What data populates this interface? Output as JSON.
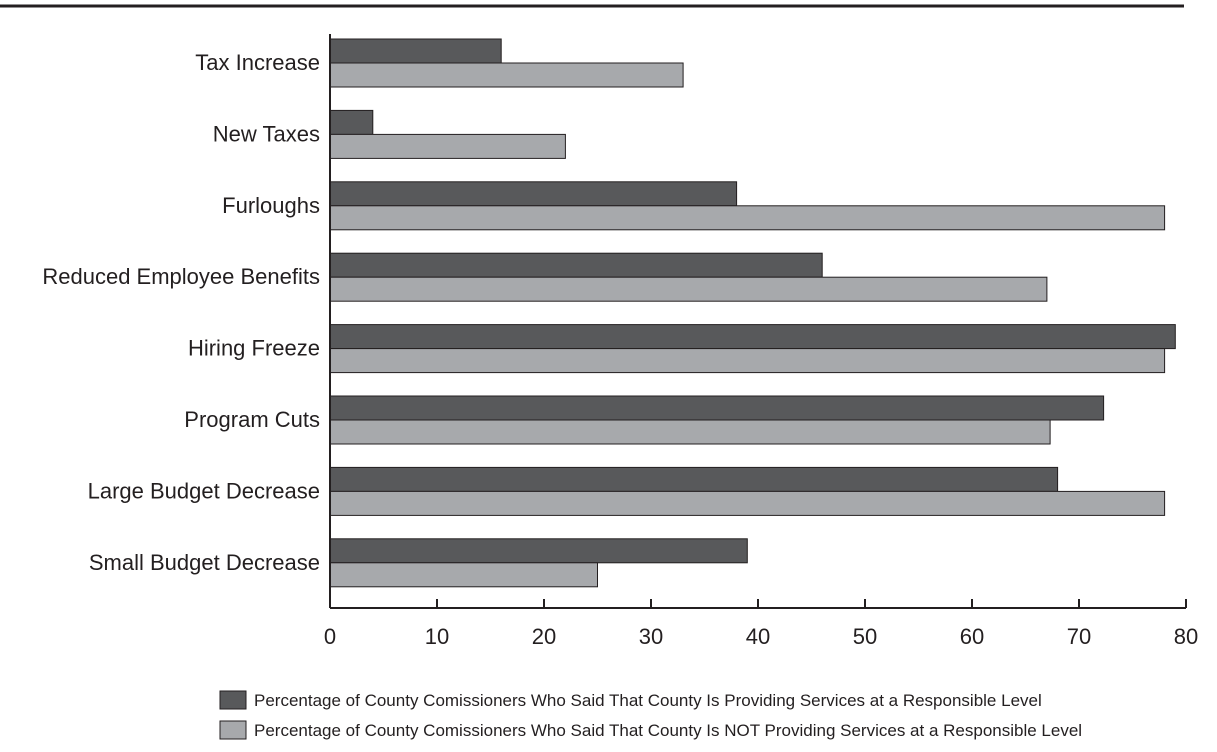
{
  "colors": {
    "series_responsible": "#58595b",
    "series_not_responsible": "#a7a9ac",
    "stroke": "#231f20"
  },
  "chart_data": {
    "type": "bar",
    "orientation": "horizontal",
    "categories": [
      "Tax Increase",
      "New Taxes",
      "Furloughs",
      "Reduced Employee Benefits",
      "Hiring Freeze",
      "Program Cuts",
      "Large Budget Decrease",
      "Small Budget Decrease"
    ],
    "series": [
      {
        "name": "Percentage of County Comissioners Who Said That County Is Providing Services at a Responsible Level",
        "values": [
          16,
          4,
          38,
          46,
          79,
          72.3,
          68,
          39
        ]
      },
      {
        "name": "Percentage of County Comissioners Who Said That County Is NOT Providing Services at a Responsible Level",
        "values": [
          33,
          22,
          78,
          67,
          78,
          67.3,
          78,
          25
        ]
      }
    ],
    "xlim": [
      0,
      80
    ],
    "xticks": [
      "0",
      "10",
      "20",
      "30",
      "40",
      "50",
      "60",
      "70",
      "80"
    ],
    "grid": false,
    "legend_position": "bottom"
  }
}
